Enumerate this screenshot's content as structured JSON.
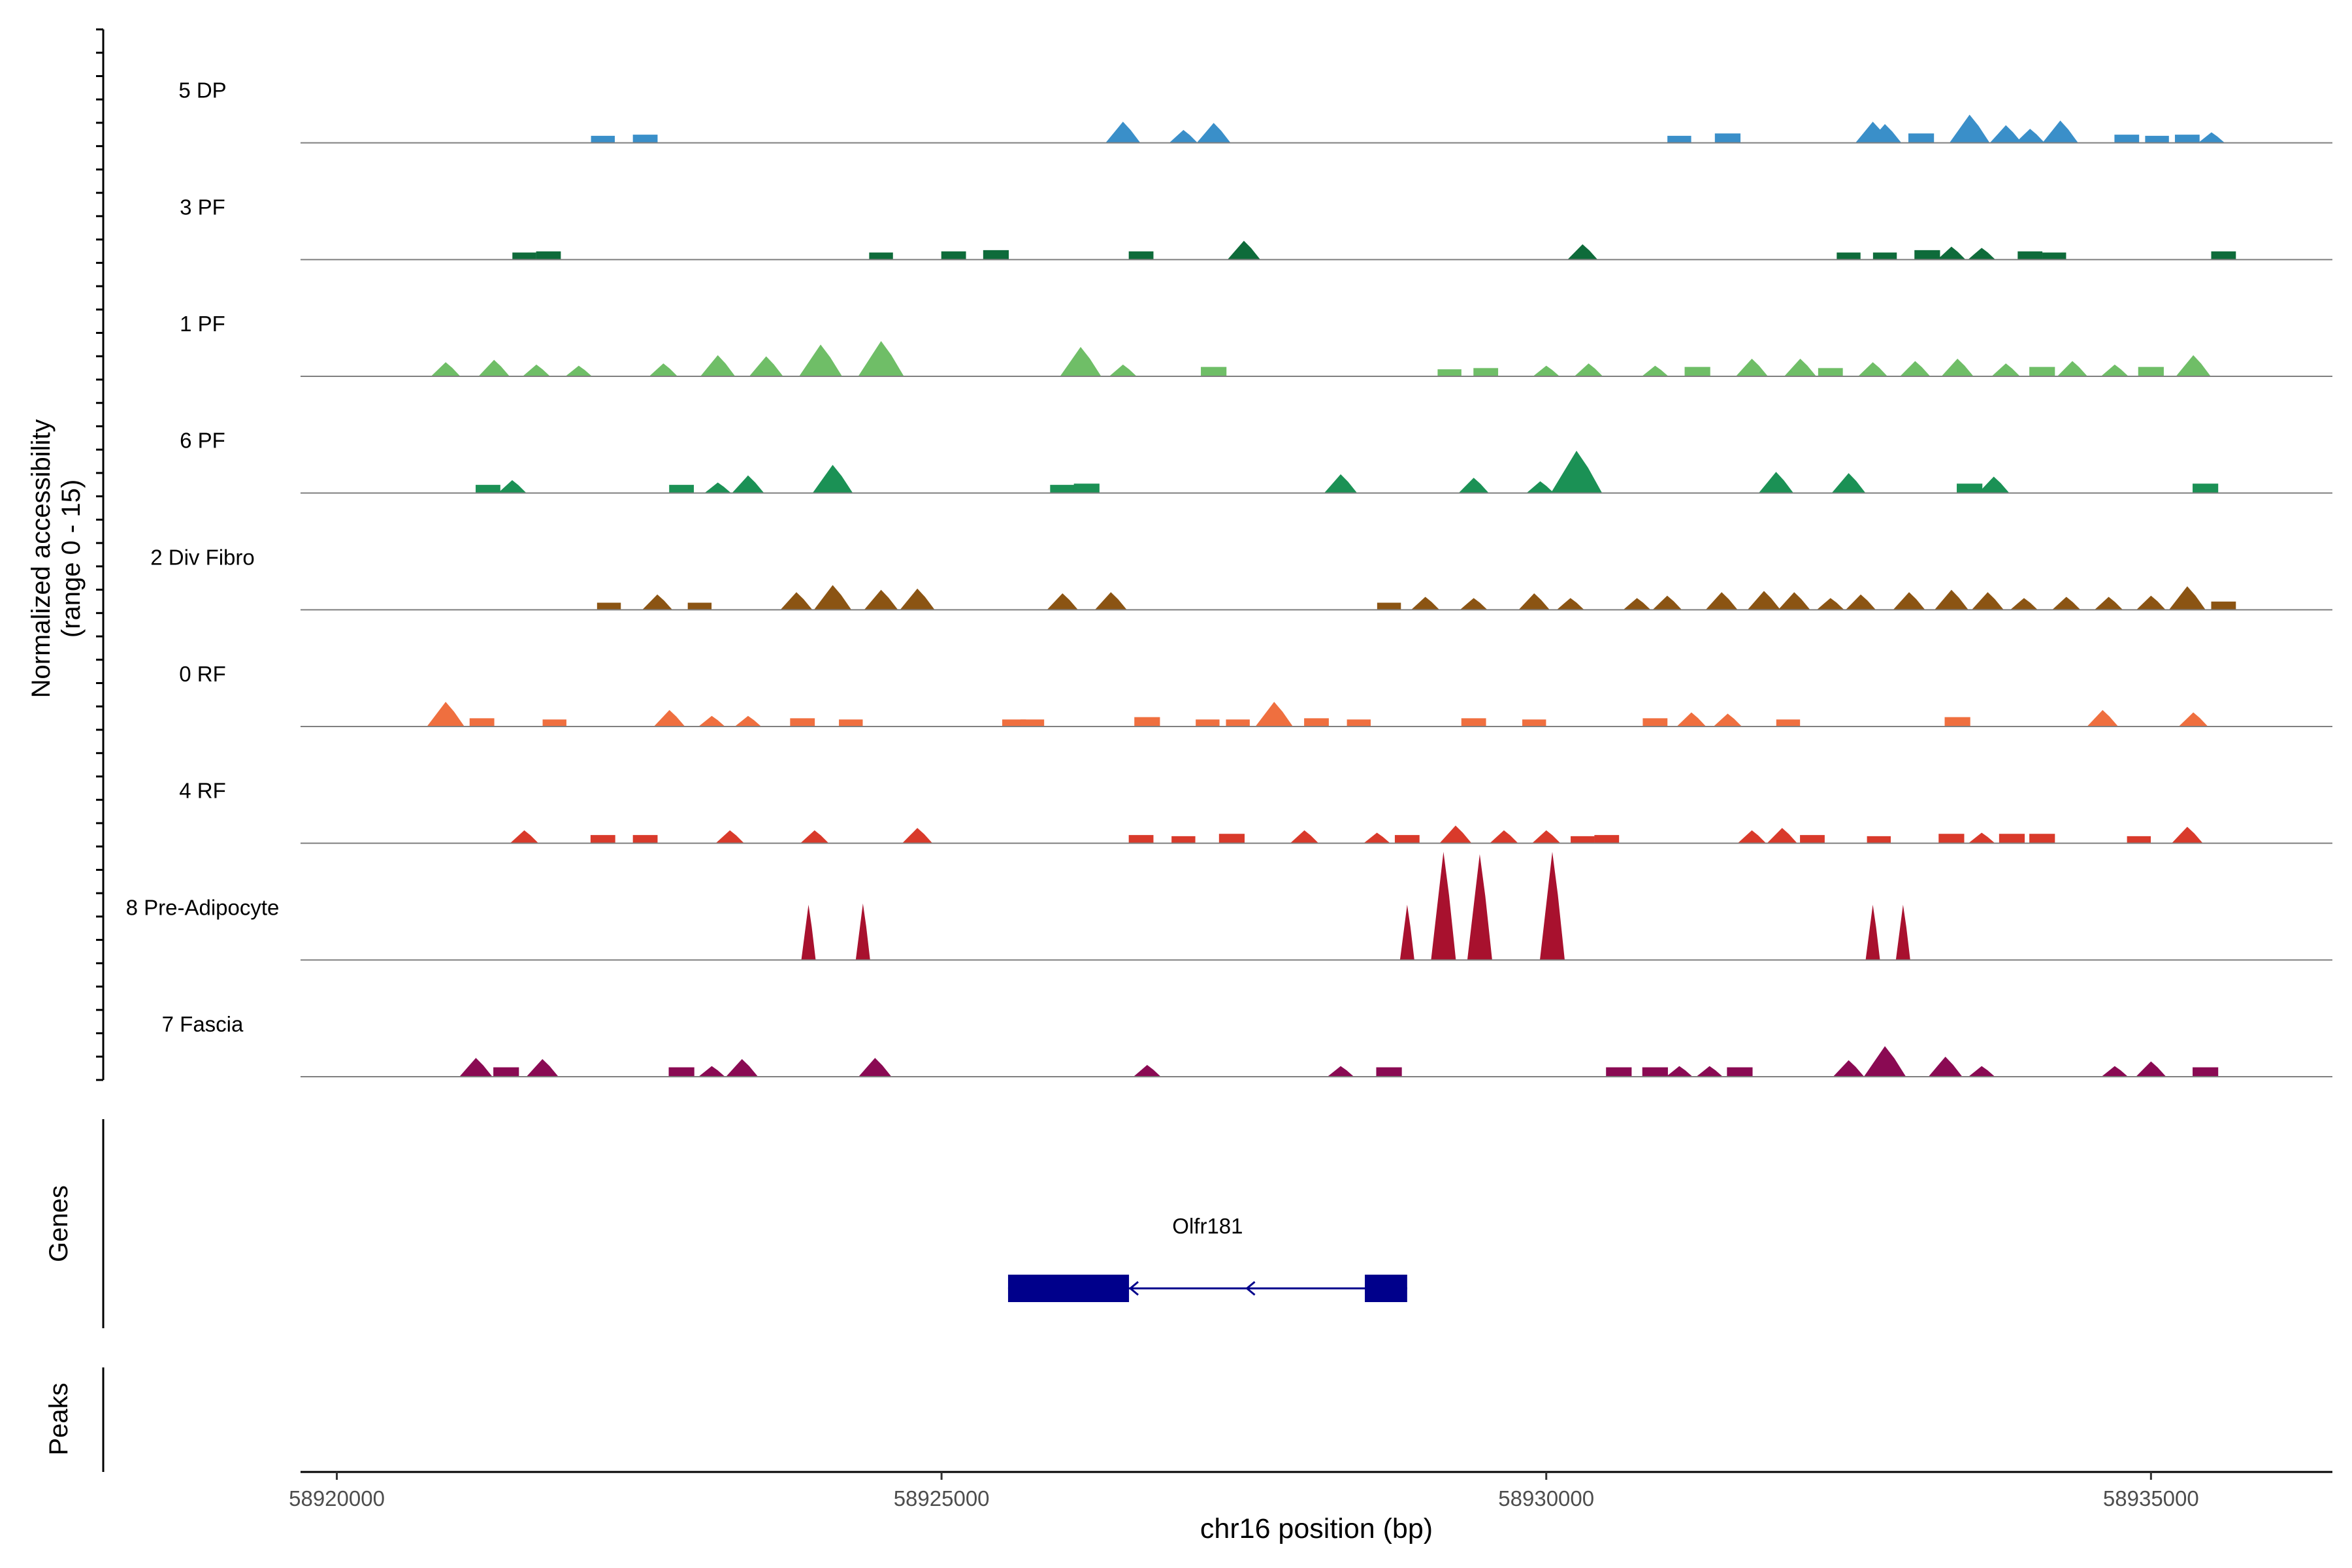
{
  "chart_data": {
    "type": "area",
    "ylabel_line1": "Normalized accessibility",
    "ylabel_line2": "(range 0 - 15)",
    "y_range": [
      0,
      15
    ],
    "xlabel": "chr16 position (bp)",
    "x_range": [
      58919700,
      58936500
    ],
    "x_ticks": [
      58920000,
      58925000,
      58930000,
      58935000
    ],
    "x_tick_labels": [
      "58920000",
      "58925000",
      "58930000",
      "58935000"
    ],
    "genes_label": "Genes",
    "peaks_label": "Peaks",
    "tracks": [
      {
        "name": "5 DP",
        "color": "#3A8FC9",
        "peaks": [
          [
            58922200,
            0.3
          ],
          [
            58922550,
            0.35
          ],
          [
            58926500,
            0.9
          ],
          [
            58927000,
            0.55
          ],
          [
            58927250,
            0.85
          ],
          [
            58931100,
            0.3
          ],
          [
            58931500,
            0.4
          ],
          [
            58932700,
            0.9
          ],
          [
            58932800,
            0.8
          ],
          [
            58933100,
            0.4
          ],
          [
            58933500,
            1.2
          ],
          [
            58933800,
            0.75
          ],
          [
            58934000,
            0.6
          ],
          [
            58934250,
            0.95
          ],
          [
            58934800,
            0.35
          ],
          [
            58935050,
            0.3
          ],
          [
            58935300,
            0.35
          ],
          [
            58935500,
            0.45
          ]
        ]
      },
      {
        "name": "3 PF",
        "color": "#0E6B3A",
        "peaks": [
          [
            58921550,
            0.3
          ],
          [
            58921750,
            0.35
          ],
          [
            58924500,
            0.3
          ],
          [
            58925100,
            0.35
          ],
          [
            58925450,
            0.4
          ],
          [
            58926650,
            0.35
          ],
          [
            58927500,
            0.8
          ],
          [
            58930300,
            0.65
          ],
          [
            58932500,
            0.3
          ],
          [
            58932800,
            0.3
          ],
          [
            58933150,
            0.4
          ],
          [
            58933350,
            0.55
          ],
          [
            58933600,
            0.5
          ],
          [
            58934000,
            0.35
          ],
          [
            58934200,
            0.3
          ],
          [
            58935600,
            0.35
          ]
        ]
      },
      {
        "name": "1 PF",
        "color": "#6FBE67",
        "peaks": [
          [
            58920900,
            0.6
          ],
          [
            58921300,
            0.7
          ],
          [
            58921650,
            0.5
          ],
          [
            58922000,
            0.45
          ],
          [
            58922700,
            0.55
          ],
          [
            58923150,
            0.9
          ],
          [
            58923550,
            0.85
          ],
          [
            58924000,
            1.35
          ],
          [
            58924500,
            1.5
          ],
          [
            58926150,
            1.25
          ],
          [
            58926500,
            0.5
          ],
          [
            58927250,
            0.4
          ],
          [
            58929200,
            0.3
          ],
          [
            58929500,
            0.35
          ],
          [
            58930000,
            0.45
          ],
          [
            58930350,
            0.55
          ],
          [
            58930900,
            0.45
          ],
          [
            58931250,
            0.4
          ],
          [
            58931700,
            0.75
          ],
          [
            58932100,
            0.75
          ],
          [
            58932350,
            0.35
          ],
          [
            58932700,
            0.6
          ],
          [
            58933050,
            0.65
          ],
          [
            58933400,
            0.75
          ],
          [
            58933800,
            0.55
          ],
          [
            58934100,
            0.4
          ],
          [
            58934350,
            0.65
          ],
          [
            58934700,
            0.5
          ],
          [
            58935000,
            0.4
          ],
          [
            58935350,
            0.9
          ]
        ]
      },
      {
        "name": "6 PF",
        "color": "#1B9155",
        "peaks": [
          [
            58921250,
            0.35
          ],
          [
            58921450,
            0.55
          ],
          [
            58922850,
            0.35
          ],
          [
            58923150,
            0.45
          ],
          [
            58923400,
            0.75
          ],
          [
            58924100,
            1.2
          ],
          [
            58926000,
            0.35
          ],
          [
            58926200,
            0.4
          ],
          [
            58928300,
            0.8
          ],
          [
            58929400,
            0.65
          ],
          [
            58929950,
            0.5
          ],
          [
            58930250,
            1.8
          ],
          [
            58931900,
            0.9
          ],
          [
            58932500,
            0.85
          ],
          [
            58933500,
            0.4
          ],
          [
            58933700,
            0.7
          ],
          [
            58935450,
            0.4
          ]
        ]
      },
      {
        "name": "2 Div Fibro",
        "color": "#8B5413",
        "peaks": [
          [
            58922250,
            0.3
          ],
          [
            58922650,
            0.65
          ],
          [
            58923000,
            0.3
          ],
          [
            58923800,
            0.75
          ],
          [
            58924100,
            1.05
          ],
          [
            58924500,
            0.85
          ],
          [
            58924800,
            0.9
          ],
          [
            58926000,
            0.7
          ],
          [
            58926400,
            0.75
          ],
          [
            58928700,
            0.3
          ],
          [
            58929000,
            0.55
          ],
          [
            58929400,
            0.5
          ],
          [
            58929900,
            0.7
          ],
          [
            58930200,
            0.5
          ],
          [
            58930750,
            0.5
          ],
          [
            58931000,
            0.6
          ],
          [
            58931450,
            0.75
          ],
          [
            58931800,
            0.8
          ],
          [
            58932050,
            0.75
          ],
          [
            58932350,
            0.5
          ],
          [
            58932600,
            0.65
          ],
          [
            58933000,
            0.75
          ],
          [
            58933350,
            0.85
          ],
          [
            58933650,
            0.75
          ],
          [
            58933950,
            0.5
          ],
          [
            58934300,
            0.55
          ],
          [
            58934650,
            0.55
          ],
          [
            58935000,
            0.6
          ],
          [
            58935300,
            1.0
          ],
          [
            58935600,
            0.35
          ]
        ]
      },
      {
        "name": "0 RF",
        "color": "#EF6F3F",
        "peaks": [
          [
            58920900,
            1.05
          ],
          [
            58921200,
            0.35
          ],
          [
            58921800,
            0.3
          ],
          [
            58922750,
            0.7
          ],
          [
            58923100,
            0.45
          ],
          [
            58923400,
            0.45
          ],
          [
            58923850,
            0.35
          ],
          [
            58924250,
            0.3
          ],
          [
            58925600,
            0.3
          ],
          [
            58925750,
            0.3
          ],
          [
            58926700,
            0.4
          ],
          [
            58927200,
            0.3
          ],
          [
            58927450,
            0.3
          ],
          [
            58927750,
            1.05
          ],
          [
            58928100,
            0.35
          ],
          [
            58928450,
            0.3
          ],
          [
            58929400,
            0.35
          ],
          [
            58929900,
            0.3
          ],
          [
            58930900,
            0.35
          ],
          [
            58931200,
            0.6
          ],
          [
            58931500,
            0.55
          ],
          [
            58932000,
            0.3
          ],
          [
            58933400,
            0.4
          ],
          [
            58934600,
            0.7
          ],
          [
            58935350,
            0.6
          ]
        ]
      },
      {
        "name": "4 RF",
        "color": "#D93A2B",
        "peaks": [
          [
            58921550,
            0.55
          ],
          [
            58922200,
            0.35
          ],
          [
            58922550,
            0.35
          ],
          [
            58923250,
            0.55
          ],
          [
            58923950,
            0.55
          ],
          [
            58924800,
            0.65
          ],
          [
            58926650,
            0.35
          ],
          [
            58927000,
            0.3
          ],
          [
            58927400,
            0.4
          ],
          [
            58928000,
            0.55
          ],
          [
            58928600,
            0.45
          ],
          [
            58928850,
            0.35
          ],
          [
            58929250,
            0.75
          ],
          [
            58929650,
            0.55
          ],
          [
            58930000,
            0.55
          ],
          [
            58930300,
            0.3
          ],
          [
            58930500,
            0.35
          ],
          [
            58931700,
            0.55
          ],
          [
            58931950,
            0.65
          ],
          [
            58932200,
            0.35
          ],
          [
            58932750,
            0.3
          ],
          [
            58933350,
            0.4
          ],
          [
            58933600,
            0.45
          ],
          [
            58933850,
            0.4
          ],
          [
            58934100,
            0.4
          ],
          [
            58934900,
            0.3
          ],
          [
            58935300,
            0.7
          ]
        ]
      },
      {
        "name": "8 Pre-Adipocyte",
        "color": "#A8112E",
        "peaks": [
          [
            58923900,
            2.35
          ],
          [
            58924350,
            2.4
          ],
          [
            58928850,
            2.35
          ],
          [
            58929150,
            4.6
          ],
          [
            58929450,
            4.5
          ],
          [
            58930050,
            4.6
          ],
          [
            58932700,
            2.35
          ],
          [
            58932950,
            2.35
          ]
        ]
      },
      {
        "name": "7 Fascia",
        "color": "#8A0A53",
        "peaks": [
          [
            58921150,
            0.8
          ],
          [
            58921400,
            0.4
          ],
          [
            58921700,
            0.75
          ],
          [
            58922850,
            0.4
          ],
          [
            58923100,
            0.45
          ],
          [
            58923350,
            0.75
          ],
          [
            58924450,
            0.8
          ],
          [
            58926700,
            0.5
          ],
          [
            58928300,
            0.45
          ],
          [
            58928700,
            0.4
          ],
          [
            58930600,
            0.4
          ],
          [
            58930900,
            0.4
          ],
          [
            58931100,
            0.45
          ],
          [
            58931350,
            0.45
          ],
          [
            58931600,
            0.4
          ],
          [
            58932500,
            0.7
          ],
          [
            58932800,
            1.3
          ],
          [
            58933300,
            0.85
          ],
          [
            58933600,
            0.45
          ],
          [
            58934700,
            0.45
          ],
          [
            58935000,
            0.65
          ],
          [
            58935450,
            0.4
          ]
        ]
      }
    ],
    "gene": {
      "name": "Olfr181",
      "strand": "-",
      "start": 58925550,
      "end": 58928850,
      "exons": [
        [
          58925550,
          58926550
        ],
        [
          58928500,
          58928850
        ]
      ]
    }
  }
}
